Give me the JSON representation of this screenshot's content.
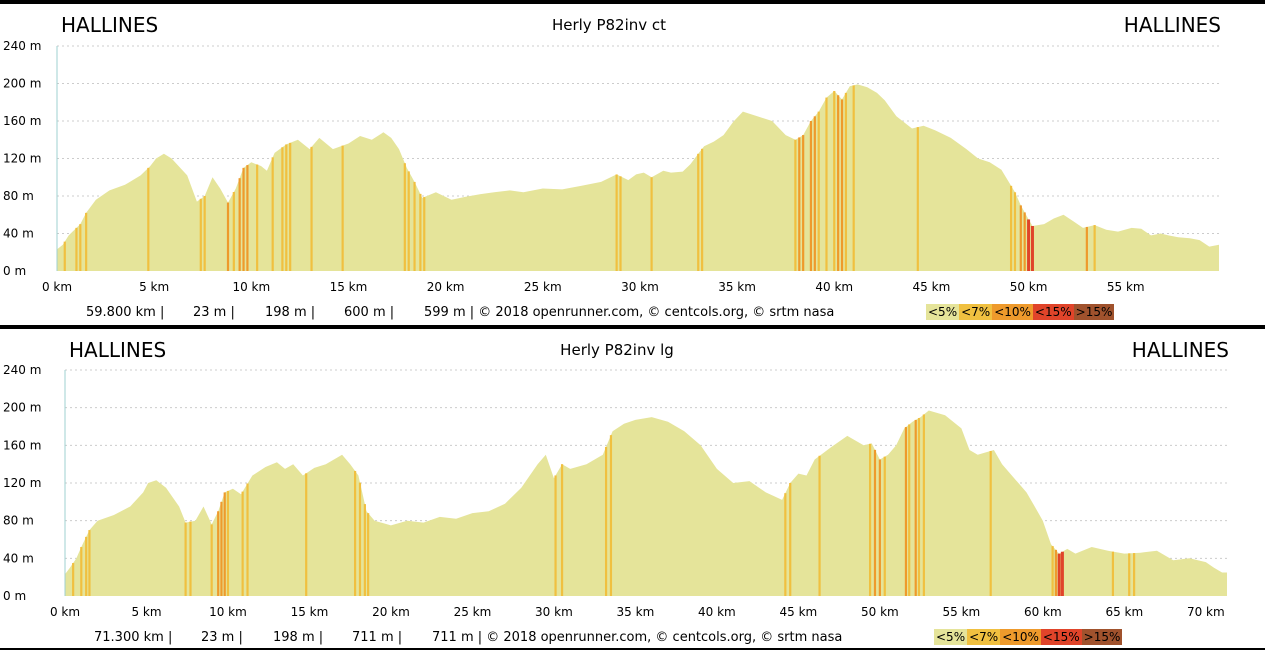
{
  "colors": {
    "fill": "#e5e49a",
    "lt7": "#f0c040",
    "lt10": "#ee9a2c",
    "lt15": "#e0442a",
    "gt15": "#a0522d",
    "axis": "#9fd0d0"
  },
  "charts": [
    {
      "start_label": "HALLINES",
      "end_label": "HALLINES",
      "title": "Herly P82inv ct",
      "stats": [
        "59.800 km |",
        "23 m |",
        "198 m |",
        "600 m |",
        "599 m | © 2018 openrunner.com, © centcols.org, © srtm nasa"
      ],
      "legend": [
        "<5%",
        "<7%",
        "<10%",
        "<15%",
        ">15%"
      ],
      "y_tick_labels": [
        "0 m",
        "40 m",
        "80 m",
        "120 m",
        "160 m",
        "200 m",
        "240 m"
      ],
      "x_tick_labels": [
        "0 km",
        "5 km",
        "10 km",
        "15 km",
        "20 km",
        "25 km",
        "30 km",
        "35 km",
        "40 km",
        "45 km",
        "50 km",
        "55 km"
      ]
    },
    {
      "start_label": "HALLINES",
      "end_label": "HALLINES",
      "title": "Herly P82inv lg",
      "stats": [
        "71.300 km |",
        "23 m |",
        "198 m |",
        "711 m |",
        "711 m | © 2018 openrunner.com, © centcols.org, © srtm nasa"
      ],
      "legend": [
        "<5%",
        "<7%",
        "<10%",
        "<15%",
        ">15%"
      ],
      "y_tick_labels": [
        "0 m",
        "40 m",
        "80 m",
        "120 m",
        "160 m",
        "200 m",
        "240 m"
      ],
      "x_tick_labels": [
        "0 km",
        "5 km",
        "10 km",
        "15 km",
        "20 km",
        "25 km",
        "30 km",
        "35 km",
        "40 km",
        "45 km",
        "50 km",
        "55 km",
        "60 km",
        "65 km",
        "70 km"
      ]
    }
  ],
  "chart_data": [
    {
      "type": "area",
      "title": "Herly P82inv ct",
      "x_unit": "km",
      "y_unit": "m",
      "xlim": [
        0,
        59.8
      ],
      "ylim": [
        0,
        240
      ],
      "x_ticks": [
        0,
        5,
        10,
        15,
        20,
        25,
        30,
        35,
        40,
        45,
        50,
        55
      ],
      "y_ticks": [
        0,
        40,
        80,
        120,
        160,
        200,
        240
      ],
      "grid": true,
      "x": [
        0,
        0.3,
        0.6,
        1.2,
        1.5,
        2,
        2.7,
        3.5,
        4.3,
        4.8,
        5.1,
        5.5,
        5.9,
        6.7,
        7.2,
        7.6,
        8,
        8.4,
        8.8,
        9.2,
        9.6,
        10,
        10.5,
        10.8,
        11.2,
        11.8,
        12.4,
        13,
        13.5,
        14.2,
        15,
        15.6,
        16.2,
        16.8,
        17.2,
        17.6,
        18,
        18.4,
        18.8,
        19.5,
        20.3,
        21,
        21.8,
        22.5,
        23.3,
        24,
        25,
        26,
        27,
        28,
        28.8,
        29.4,
        29.8,
        30.2,
        30.6,
        31.2,
        31.6,
        32.2,
        32.6,
        33,
        33.3,
        33.8,
        34.3,
        34.8,
        35.3,
        36.2,
        36.8,
        37.5,
        38,
        38.4,
        38.8,
        39.2,
        39.6,
        40,
        40.4,
        40.8,
        41.2,
        41.7,
        42.2,
        42.6,
        43.2,
        44,
        44.6,
        45.2,
        46,
        46.8,
        47.4,
        48,
        48.6,
        49.3,
        49.6,
        50,
        50.2,
        50.8,
        51.3,
        51.8,
        52.3,
        52.8,
        53.4,
        54,
        54.6,
        55.3,
        55.8,
        56.3,
        56.8,
        57.2,
        57.7,
        58.3,
        58.8,
        59.3,
        59.8
      ],
      "y": [
        23,
        28,
        38,
        50,
        62,
        76,
        86,
        92,
        102,
        112,
        120,
        125,
        120,
        102,
        74,
        80,
        100,
        88,
        73,
        88,
        110,
        116,
        112,
        107,
        126,
        135,
        140,
        130,
        142,
        130,
        136,
        144,
        140,
        148,
        142,
        130,
        110,
        95,
        78,
        84,
        76,
        79,
        82,
        84,
        86,
        84,
        88,
        87,
        91,
        95,
        103,
        97,
        103,
        105,
        100,
        107,
        105,
        106,
        114,
        125,
        133,
        138,
        145,
        159,
        170,
        164,
        160,
        145,
        140,
        145,
        160,
        170,
        185,
        192,
        183,
        197,
        199,
        196,
        190,
        182,
        165,
        152,
        155,
        150,
        142,
        130,
        120,
        116,
        108,
        84,
        70,
        55,
        48,
        50,
        56,
        60,
        53,
        46,
        49,
        44,
        42,
        46,
        45,
        38,
        40,
        38,
        36,
        35,
        33,
        26,
        28
      ],
      "steep_km": [
        [
          0.4,
          "lt7"
        ],
        [
          1,
          "lt7"
        ],
        [
          1.2,
          "lt7"
        ],
        [
          1.5,
          "lt7"
        ],
        [
          4.7,
          "lt7"
        ],
        [
          7.4,
          "lt7"
        ],
        [
          7.6,
          "lt7"
        ],
        [
          8.8,
          "lt10"
        ],
        [
          9.1,
          "lt7"
        ],
        [
          9.4,
          "lt10"
        ],
        [
          9.6,
          "lt10"
        ],
        [
          9.8,
          "lt10"
        ],
        [
          10.3,
          "lt7"
        ],
        [
          11.1,
          "lt7"
        ],
        [
          11.6,
          "lt7"
        ],
        [
          11.8,
          "lt7"
        ],
        [
          12,
          "lt7"
        ],
        [
          13.1,
          "lt7"
        ],
        [
          14.7,
          "lt7"
        ],
        [
          17.9,
          "lt7"
        ],
        [
          18.1,
          "lt7"
        ],
        [
          18.4,
          "lt7"
        ],
        [
          18.7,
          "lt7"
        ],
        [
          18.9,
          "lt7"
        ],
        [
          28.8,
          "lt7"
        ],
        [
          29,
          "lt7"
        ],
        [
          30.6,
          "lt7"
        ],
        [
          33,
          "lt7"
        ],
        [
          33.2,
          "lt7"
        ],
        [
          38,
          "lt7"
        ],
        [
          38.2,
          "lt10"
        ],
        [
          38.4,
          "lt10"
        ],
        [
          38.8,
          "lt10"
        ],
        [
          39,
          "lt10"
        ],
        [
          39.2,
          "lt7"
        ],
        [
          39.6,
          "lt7"
        ],
        [
          40,
          "lt7"
        ],
        [
          40.2,
          "lt10"
        ],
        [
          40.4,
          "lt10"
        ],
        [
          40.6,
          "lt7"
        ],
        [
          41,
          "lt7"
        ],
        [
          44.3,
          "lt7"
        ],
        [
          49.1,
          "lt7"
        ],
        [
          49.3,
          "lt7"
        ],
        [
          49.6,
          "lt10"
        ],
        [
          49.8,
          "lt10"
        ],
        [
          50,
          "lt15"
        ],
        [
          50.2,
          "lt15"
        ],
        [
          53,
          "lt10"
        ],
        [
          53.4,
          "lt7"
        ]
      ]
    },
    {
      "type": "area",
      "title": "Herly P82inv lg",
      "x_unit": "km",
      "y_unit": "m",
      "xlim": [
        0,
        71.3
      ],
      "ylim": [
        0,
        240
      ],
      "x_ticks": [
        0,
        5,
        10,
        15,
        20,
        25,
        30,
        35,
        40,
        45,
        50,
        55,
        60,
        65,
        70
      ],
      "y_ticks": [
        0,
        40,
        80,
        120,
        160,
        200,
        240
      ],
      "grid": true,
      "x": [
        0,
        0.3,
        0.7,
        1,
        1.5,
        2,
        3,
        4,
        4.8,
        5.1,
        5.6,
        6.2,
        7,
        7.4,
        8,
        8.5,
        9,
        9.4,
        9.8,
        10.3,
        10.8,
        11.5,
        12.3,
        13,
        13.5,
        14,
        14.6,
        15.3,
        16,
        17,
        17.5,
        18,
        18.5,
        19,
        20,
        21,
        22,
        23,
        24,
        25,
        26,
        27,
        28,
        29,
        29.5,
        30,
        30.5,
        31,
        32,
        33,
        33.6,
        34.3,
        35,
        36,
        37,
        38,
        39,
        40,
        41,
        42,
        43,
        44,
        44.5,
        45,
        45.5,
        46,
        47,
        48,
        49,
        49.5,
        50,
        50.5,
        51,
        51.5,
        52,
        52.5,
        53,
        54,
        55,
        55.5,
        56,
        57,
        57.5,
        58,
        59,
        59.5,
        60,
        60.5,
        61,
        61.5,
        62,
        63,
        64,
        65,
        66,
        67,
        68,
        69,
        70,
        70.5,
        71,
        71.3
      ],
      "y": [
        23,
        30,
        40,
        52,
        70,
        80,
        86,
        95,
        110,
        120,
        123,
        115,
        95,
        78,
        80,
        95,
        76,
        90,
        110,
        114,
        108,
        128,
        137,
        142,
        135,
        140,
        128,
        136,
        140,
        150,
        140,
        128,
        90,
        80,
        75,
        80,
        78,
        84,
        82,
        88,
        90,
        98,
        115,
        140,
        150,
        125,
        140,
        135,
        140,
        150,
        175,
        183,
        187,
        190,
        185,
        175,
        160,
        135,
        120,
        122,
        110,
        102,
        120,
        130,
        128,
        145,
        158,
        170,
        160,
        162,
        145,
        150,
        160,
        178,
        185,
        190,
        197,
        192,
        178,
        155,
        150,
        155,
        140,
        130,
        110,
        95,
        80,
        55,
        45,
        50,
        45,
        52,
        48,
        45,
        46,
        48,
        38,
        40,
        36,
        30,
        25,
        25
      ],
      "steep_km": [
        [
          0.5,
          "lt7"
        ],
        [
          1,
          "lt7"
        ],
        [
          1.3,
          "lt7"
        ],
        [
          1.5,
          "lt7"
        ],
        [
          7.4,
          "lt7"
        ],
        [
          7.7,
          "lt7"
        ],
        [
          9,
          "lt7"
        ],
        [
          9.4,
          "lt10"
        ],
        [
          9.6,
          "lt10"
        ],
        [
          9.8,
          "lt10"
        ],
        [
          10,
          "lt7"
        ],
        [
          10.9,
          "lt7"
        ],
        [
          11.2,
          "lt7"
        ],
        [
          14.8,
          "lt7"
        ],
        [
          17.8,
          "lt7"
        ],
        [
          18.1,
          "lt7"
        ],
        [
          18.4,
          "lt7"
        ],
        [
          18.6,
          "lt7"
        ],
        [
          30.1,
          "lt7"
        ],
        [
          30.5,
          "lt7"
        ],
        [
          33.2,
          "lt7"
        ],
        [
          33.5,
          "lt7"
        ],
        [
          44.2,
          "lt7"
        ],
        [
          44.5,
          "lt7"
        ],
        [
          46.3,
          "lt7"
        ],
        [
          49.4,
          "lt7"
        ],
        [
          49.7,
          "lt10"
        ],
        [
          50,
          "lt10"
        ],
        [
          50.3,
          "lt7"
        ],
        [
          51.6,
          "lt10"
        ],
        [
          51.8,
          "lt7"
        ],
        [
          52.2,
          "lt10"
        ],
        [
          52.4,
          "lt7"
        ],
        [
          52.7,
          "lt7"
        ],
        [
          56.8,
          "lt7"
        ],
        [
          60.6,
          "lt7"
        ],
        [
          60.8,
          "lt10"
        ],
        [
          61,
          "lt15"
        ],
        [
          61.2,
          "lt15"
        ],
        [
          64.3,
          "lt7"
        ],
        [
          65.3,
          "lt7"
        ],
        [
          65.6,
          "lt7"
        ]
      ]
    }
  ]
}
